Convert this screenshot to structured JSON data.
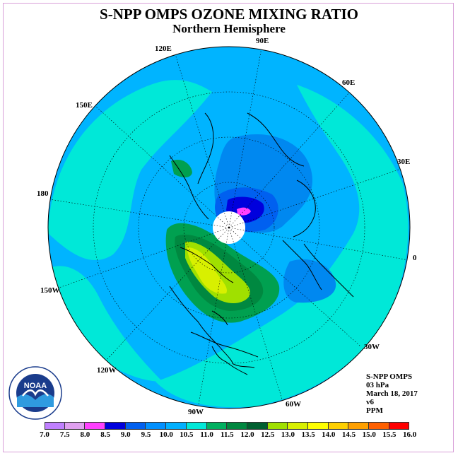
{
  "title": "S-NPP OMPS OZONE MIXING RATIO",
  "subtitle": "Northern Hemisphere",
  "longitude_labels": [
    "90E",
    "60E",
    "30E",
    "0",
    "30W",
    "60W",
    "90W",
    "120W",
    "150W",
    "180",
    "150E",
    "120E"
  ],
  "info": {
    "instrument": "S-NPP OMPS",
    "level": "03 hPa",
    "date": "March 18, 2017",
    "version": "v6",
    "units": "PPM"
  },
  "logo_text": "NOAA",
  "colorbar": {
    "ticks": [
      "7.0",
      "7.5",
      "8.0",
      "8.5",
      "9.0",
      "9.5",
      "10.0",
      "10.5",
      "11.0",
      "11.5",
      "12.0",
      "12.5",
      "13.0",
      "13.5",
      "14.0",
      "14.5",
      "15.0",
      "15.5",
      "16.0"
    ],
    "colors": [
      "#c080ff",
      "#e0a0f0",
      "#ff40ff",
      "#0000dd",
      "#0060f0",
      "#0090ff",
      "#00b0ff",
      "#00e8d8",
      "#00b060",
      "#008840",
      "#006030",
      "#a0e000",
      "#d8f000",
      "#ffff00",
      "#ffd000",
      "#ffa000",
      "#ff6000",
      "#ff0000",
      "#a0522d"
    ]
  },
  "fill_colors": {
    "background_field": "#00b4ff",
    "high_band": "#00e8d8",
    "low_blue": "#0088f0",
    "lowest": "#0000dd",
    "min": "#ff40ff",
    "max_green": "#00a050",
    "max_dark": "#006030",
    "max_yellow": "#c8f000"
  }
}
